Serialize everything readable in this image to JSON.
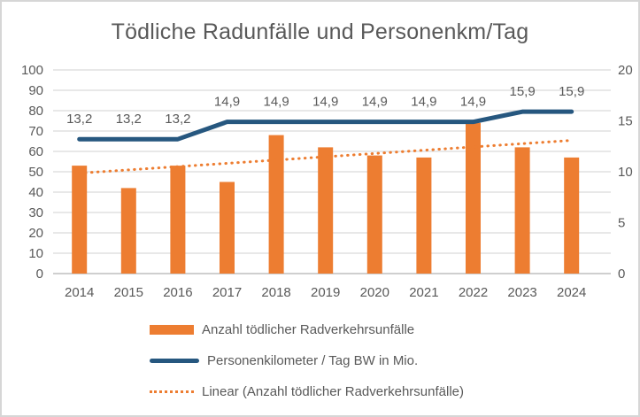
{
  "colors": {
    "bar_orange": "#ED7D31",
    "line_blue": "#26577F",
    "trend_orange": "#ED7D31",
    "text_gray": "#595959",
    "gridline": "#D9D9D9",
    "axis_line": "#BFBFBF",
    "chart_border": "#D6D6D6"
  },
  "chart_data": {
    "type": "combo",
    "title": "Tödliche Radunfälle und Personenkm/Tag",
    "categories": [
      "2014",
      "2015",
      "2016",
      "2017",
      "2018",
      "2019",
      "2020",
      "2021",
      "2022",
      "2023",
      "2024"
    ],
    "series": [
      {
        "name": "Anzahl tödlicher Radverkehrsunfälle",
        "type": "bar",
        "axis": "left",
        "color": "#ED7D31",
        "values": [
          53,
          42,
          53,
          45,
          68,
          62,
          58,
          57,
          74,
          62,
          57
        ]
      },
      {
        "name": "Personenkilometer / Tag BW in Mio.",
        "type": "line",
        "axis": "right",
        "color": "#26577F",
        "values": [
          13.2,
          13.2,
          13.2,
          14.9,
          14.9,
          14.9,
          14.9,
          14.9,
          14.9,
          15.9,
          15.9
        ],
        "data_labels": [
          "13,2",
          "13,2",
          "13,2",
          "14,9",
          "14,9",
          "14,9",
          "14,9",
          "14,9",
          "14,9",
          "15,9",
          "15,9"
        ]
      },
      {
        "name": "Linear (Anzahl tödlicher Radverkehrsunfälle)",
        "type": "trendline",
        "of_series": 0,
        "axis": "left",
        "color": "#ED7D31",
        "style": "dotted"
      }
    ],
    "left_axis": {
      "min": 0,
      "max": 100,
      "step": 10,
      "tick_labels": [
        "100",
        "90",
        "80",
        "70",
        "60",
        "50",
        "40",
        "30",
        "20",
        "10",
        "0"
      ]
    },
    "right_axis": {
      "min": 0,
      "max": 20,
      "step": 5,
      "tick_labels": [
        "20",
        "15",
        "10",
        "5",
        "0"
      ]
    },
    "grid": true,
    "legend_position": "bottom"
  }
}
